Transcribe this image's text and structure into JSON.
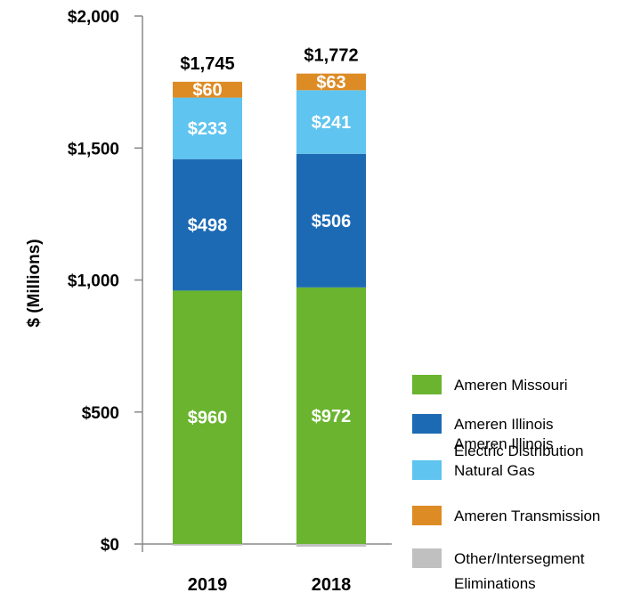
{
  "chart_data": {
    "type": "bar",
    "stacked": true,
    "title": "",
    "xlabel": "",
    "ylabel": "$ (Millions)",
    "ylim": [
      0,
      2000
    ],
    "yticks": [
      0,
      500,
      1000,
      1500,
      2000
    ],
    "ytick_labels": [
      "$0",
      "$500",
      "$1,000",
      "$1,500",
      "$2,000"
    ],
    "categories": [
      "2019",
      "2018"
    ],
    "totals": [
      1745,
      1772
    ],
    "total_labels": [
      "$1,745",
      "$1,772"
    ],
    "series": [
      {
        "name": "Ameren Missouri",
        "color": "#6ab42f",
        "values": [
          960,
          972
        ],
        "labels": [
          "$960",
          "$972"
        ]
      },
      {
        "name": "Ameren Illinois Electric Distribution",
        "legend_lines": [
          "Ameren Illinois",
          "Electric Distribution"
        ],
        "color": "#1d6ab4",
        "values": [
          498,
          506
        ],
        "labels": [
          "$498",
          "$506"
        ]
      },
      {
        "name": "Ameren Illinois Natural Gas",
        "legend_lines": [
          "Ameren Illinois",
          "Natural Gas"
        ],
        "color": "#5fc4ef",
        "values": [
          233,
          241
        ],
        "labels": [
          "$233",
          "$241"
        ]
      },
      {
        "name": "Ameren Transmission",
        "color": "#dd8b24",
        "values": [
          60,
          63
        ],
        "labels": [
          "$60",
          "$63"
        ]
      },
      {
        "name": "Other/Intersegment Eliminations",
        "legend_lines": [
          "Other/Intersegment",
          "Eliminations"
        ],
        "color": "#c0c0c0",
        "values": [
          -6,
          -10
        ],
        "labels": [
          "",
          ""
        ]
      }
    ],
    "legend_position": "right"
  }
}
